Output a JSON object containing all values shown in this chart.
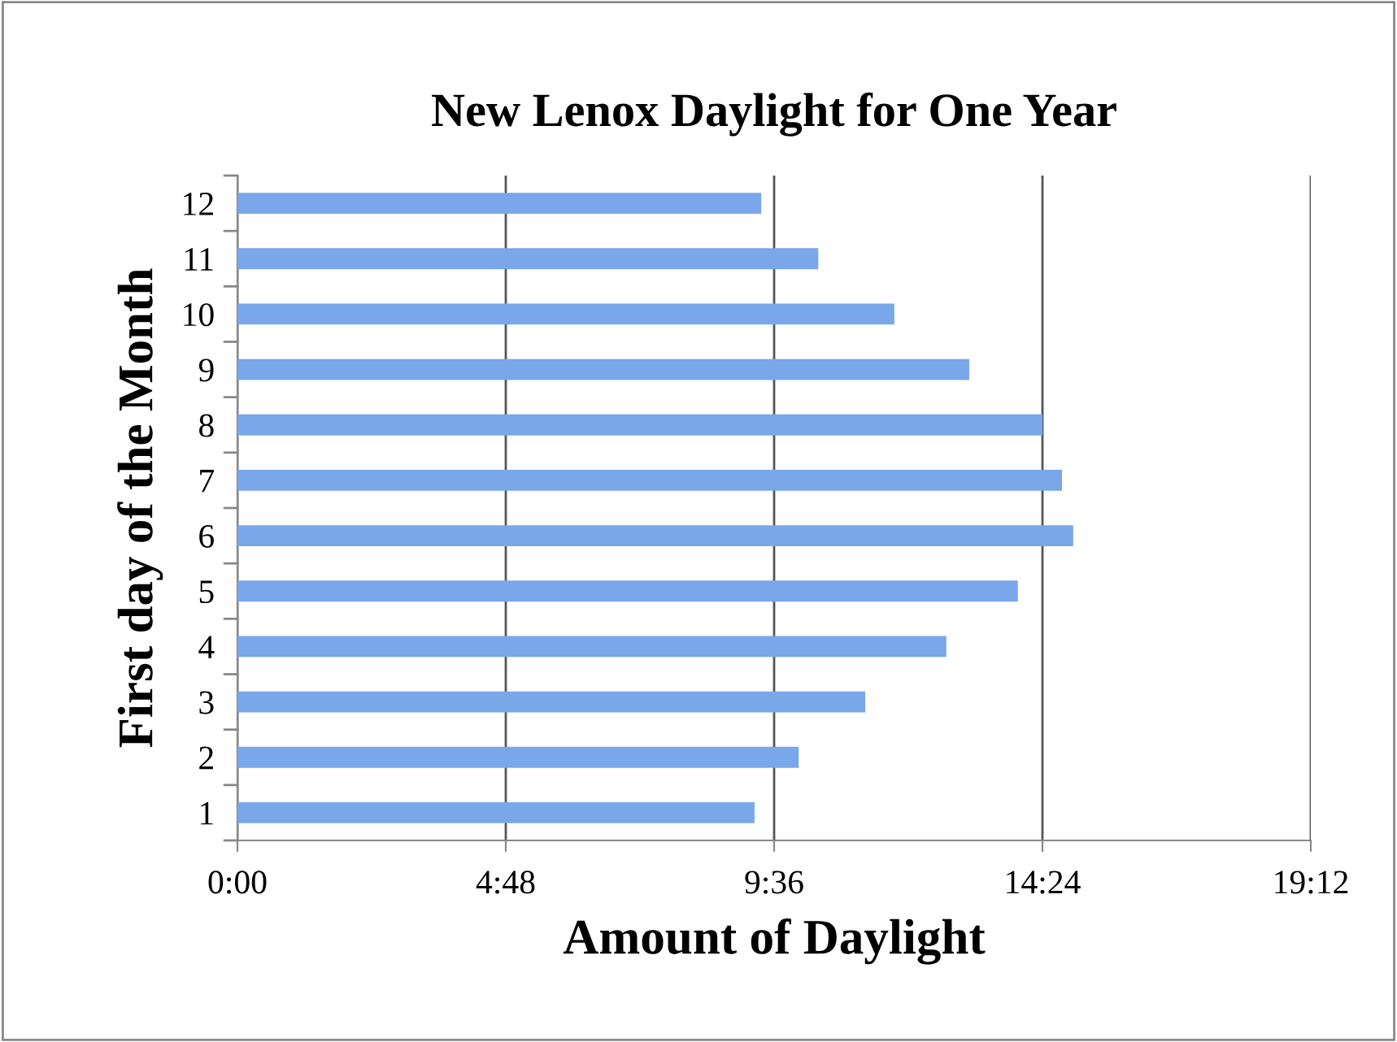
{
  "chart_data": {
    "type": "bar",
    "orientation": "horizontal",
    "title": "New Lenox Daylight for One Year",
    "xlabel": "Amount of Daylight",
    "ylabel": "First day of the Month",
    "categories": [
      "12",
      "11",
      "10",
      "9",
      "8",
      "7",
      "6",
      "5",
      "4",
      "3",
      "2",
      "1"
    ],
    "series": [
      {
        "color": "#7aa6ea",
        "values": [
          9.37,
          10.39,
          11.75,
          13.09,
          14.4,
          14.75,
          14.95,
          13.96,
          12.68,
          11.23,
          10.04,
          9.25
        ]
      }
    ],
    "xlim": [
      0,
      19.2
    ],
    "xticks": [
      {
        "value": 0,
        "label": "0:00"
      },
      {
        "value": 4.8,
        "label": "4:48"
      },
      {
        "value": 9.6,
        "label": "9:36"
      },
      {
        "value": 14.4,
        "label": "14:24"
      },
      {
        "value": 19.2,
        "label": "19:12"
      }
    ],
    "grid": "x",
    "legend": false
  }
}
